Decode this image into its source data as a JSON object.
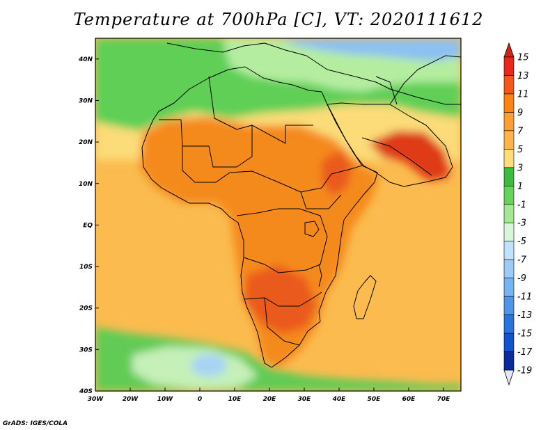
{
  "title": "Temperature at 700hPa [C], VT: 2020111612",
  "credit": "GrADS: IGES/COLA",
  "map": {
    "lon_range": [
      -30,
      75
    ],
    "lat_range": [
      -40,
      45
    ],
    "lat_ticks": [
      {
        "value": 40,
        "label": "40N"
      },
      {
        "value": 30,
        "label": "30N"
      },
      {
        "value": 20,
        "label": "20N"
      },
      {
        "value": 10,
        "label": "10N"
      },
      {
        "value": 0,
        "label": "EQ"
      },
      {
        "value": -10,
        "label": "10S"
      },
      {
        "value": -20,
        "label": "20S"
      },
      {
        "value": -30,
        "label": "30S"
      },
      {
        "value": -40,
        "label": "40S"
      }
    ],
    "lon_ticks": [
      {
        "value": -30,
        "label": "30W"
      },
      {
        "value": -20,
        "label": "20W"
      },
      {
        "value": -10,
        "label": "10W"
      },
      {
        "value": 0,
        "label": "0"
      },
      {
        "value": 10,
        "label": "10E"
      },
      {
        "value": 20,
        "label": "20E"
      },
      {
        "value": 30,
        "label": "30E"
      },
      {
        "value": 40,
        "label": "40E"
      },
      {
        "value": 50,
        "label": "50E"
      },
      {
        "value": 60,
        "label": "60E"
      },
      {
        "value": 70,
        "label": "70E"
      }
    ],
    "colors": {
      "ocean_tropics": "#f7a23a",
      "ocean_mid": "#fbbb4f",
      "north_band": "#fbdc78",
      "mediterranean_green": "#5fcf56",
      "cool_pale": "#b5eda0",
      "europe_blue": "#8cc0f2",
      "south_green": "#62cb54",
      "south_pale": "#c5f0b8",
      "south_cold": "#a7d3f5",
      "land_warm": "#f58a1f",
      "land_hot": "#ea5a1a",
      "arabia_hot": "#de3b18"
    }
  },
  "colorbar": {
    "labels": [
      "15",
      "13",
      "11",
      "9",
      "7",
      "5",
      "3",
      "1",
      "-1",
      "-3",
      "-5",
      "-7",
      "-9",
      "-11",
      "-13",
      "-15",
      "-17",
      "-19"
    ],
    "colors": [
      "#e8281c",
      "#f5561b",
      "#f98515",
      "#fb9f33",
      "#fcb54b",
      "#fddd7a",
      "#3dbb3f",
      "#66d35c",
      "#a4e896",
      "#d9f6d9",
      "#c1e2fb",
      "#9cccf6",
      "#77b5f0",
      "#4f95e8",
      "#2b73dd",
      "#1152cf",
      "#0a2c9b"
    ],
    "top_arrow_color": "#d62216",
    "bottom_arrow_color": "#e8e4fb"
  }
}
